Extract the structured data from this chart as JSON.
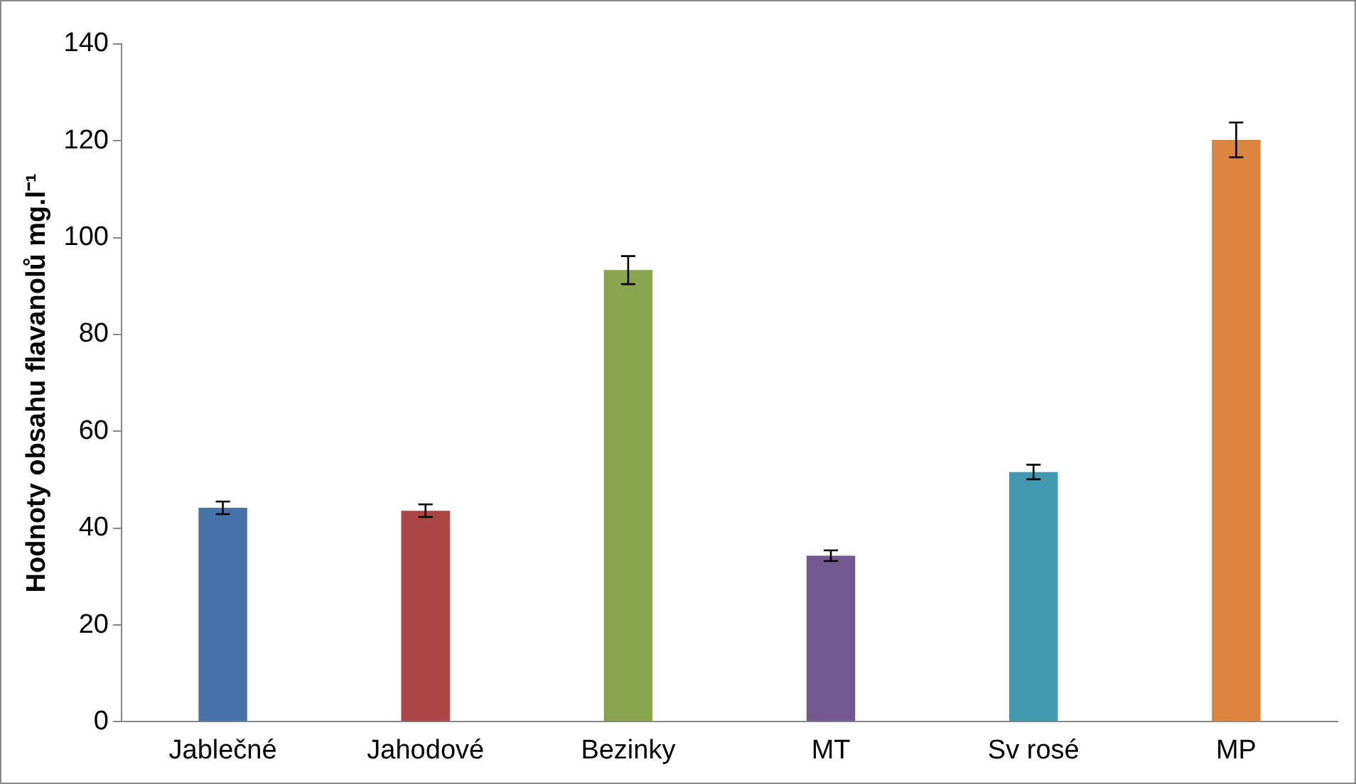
{
  "chart_data": {
    "type": "bar",
    "ylabel": "Hodnoty obsahu flavanolů mg.l⁻¹",
    "categories": [
      "Jablečné",
      "Jahodové",
      "Bezinky",
      "MT",
      "Sv rosé",
      "MP"
    ],
    "values": [
      44.2,
      43.6,
      93.3,
      34.3,
      51.6,
      120.2
    ],
    "colors": [
      "#4572a7",
      "#aa4643",
      "#89a54e",
      "#71588f",
      "#4198af",
      "#db843d"
    ],
    "errors": [
      1.3,
      1.3,
      2.9,
      1.1,
      1.5,
      3.6
    ],
    "ylim": [
      0,
      140
    ],
    "yticks": [
      0,
      20,
      40,
      60,
      80,
      100,
      120,
      140
    ],
    "grid": false,
    "legend": false
  }
}
